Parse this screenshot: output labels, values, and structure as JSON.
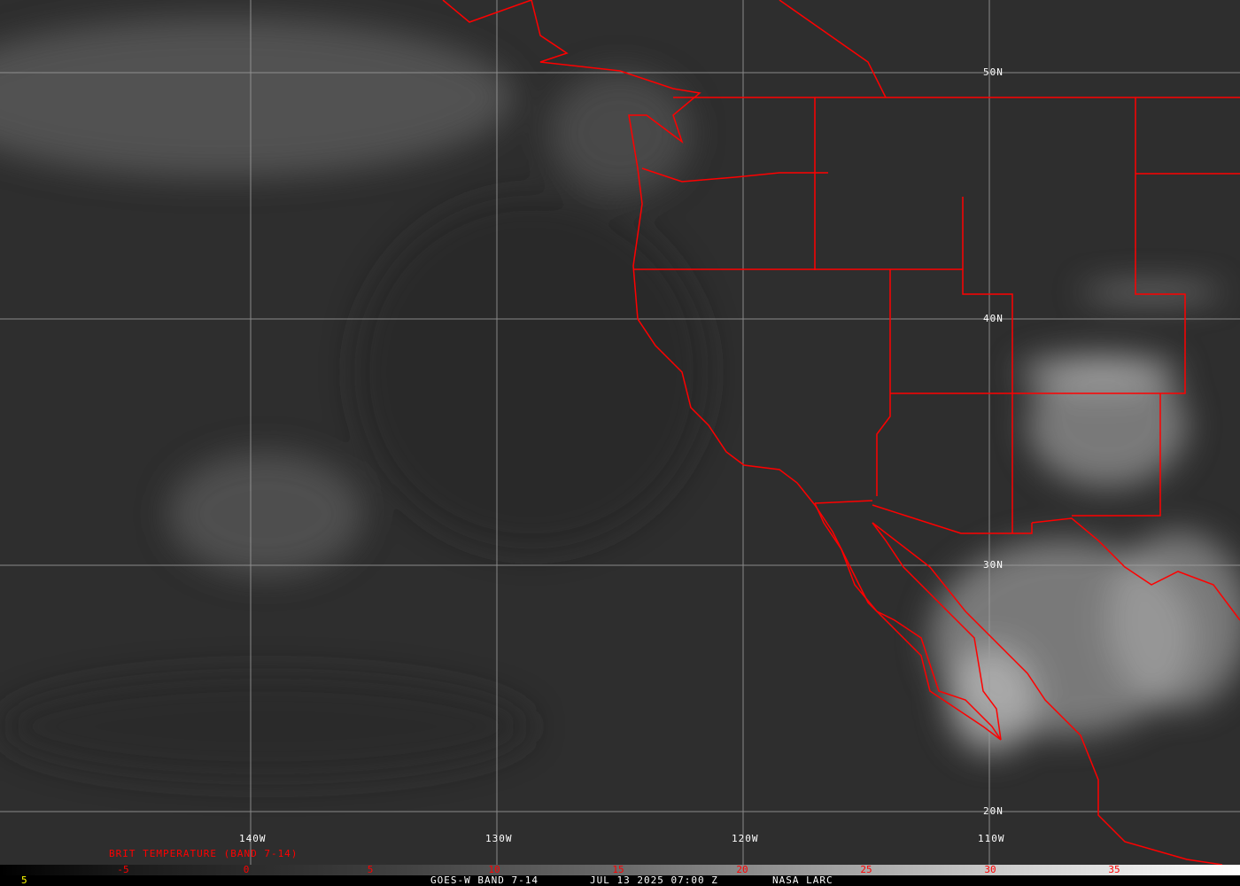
{
  "map": {
    "type": "satellite-infrared-image",
    "border_color": "#ff0000",
    "grid_color": "#a0a0a0",
    "longitude_labels": [
      "140W",
      "130W",
      "120W",
      "110W"
    ],
    "latitude_labels": [
      "50N",
      "40N",
      "30N",
      "20N"
    ]
  },
  "legend": {
    "title": "BRIT TEMPERATURE (BAND 7-14)",
    "ticks": [
      "-5",
      "0",
      "5",
      "10",
      "15",
      "20",
      "25",
      "30",
      "35"
    ],
    "color": "#ff0000"
  },
  "footer": {
    "frame_number": "5",
    "frame_color": "#ffff00",
    "satellite": "GOES-W BAND 7-14",
    "datetime": "JUL 13 2025 07:00 Z",
    "credit": "NASA LARC"
  }
}
